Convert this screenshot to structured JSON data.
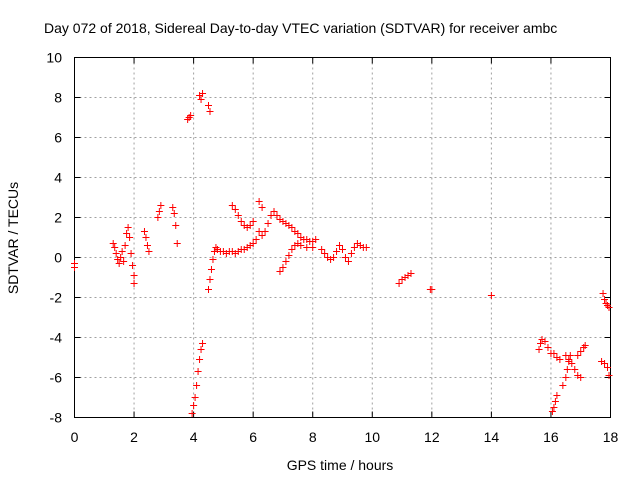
{
  "chart_data": {
    "type": "scatter",
    "title": "Day 072 of 2018, Sidereal Day-to-day VTEC variation (SDTVAR) for receiver ambc",
    "xlabel": "GPS time / hours",
    "ylabel": "SDTVAR / TECUs",
    "xlim": [
      0,
      18
    ],
    "ylim": [
      -8,
      10
    ],
    "xticks": [
      "0",
      "2",
      "4",
      "6",
      "8",
      "10",
      "12",
      "14",
      "16",
      "18"
    ],
    "yticks": [
      "-8",
      "-6",
      "-4",
      "-2",
      "0",
      "2",
      "4",
      "6",
      "8",
      "10"
    ],
    "grid": true,
    "marker": "+",
    "color": "#ff0000",
    "series": [
      {
        "name": "SDTVAR",
        "points": [
          [
            0.0,
            -0.3
          ],
          [
            0.0,
            -0.5
          ],
          [
            1.3,
            0.7
          ],
          [
            1.35,
            0.5
          ],
          [
            1.4,
            0.2
          ],
          [
            1.45,
            -0.1
          ],
          [
            1.5,
            -0.3
          ],
          [
            1.55,
            0.0
          ],
          [
            1.6,
            0.3
          ],
          [
            1.65,
            -0.2
          ],
          [
            1.7,
            0.6
          ],
          [
            1.75,
            1.2
          ],
          [
            1.8,
            1.5
          ],
          [
            1.85,
            1.0
          ],
          [
            1.9,
            0.2
          ],
          [
            1.95,
            -0.4
          ],
          [
            2.0,
            -0.9
          ],
          [
            2.0,
            -1.3
          ],
          [
            2.35,
            1.3
          ],
          [
            2.4,
            1.0
          ],
          [
            2.45,
            0.6
          ],
          [
            2.5,
            0.3
          ],
          [
            2.8,
            2.0
          ],
          [
            2.85,
            2.3
          ],
          [
            2.9,
            2.6
          ],
          [
            3.3,
            2.5
          ],
          [
            3.35,
            2.2
          ],
          [
            3.4,
            1.6
          ],
          [
            3.45,
            0.7
          ],
          [
            3.8,
            6.9
          ],
          [
            3.85,
            7.0
          ],
          [
            3.9,
            7.1
          ],
          [
            4.2,
            8.1
          ],
          [
            4.25,
            7.9
          ],
          [
            4.3,
            8.2
          ],
          [
            4.5,
            7.6
          ],
          [
            4.55,
            7.3
          ],
          [
            3.95,
            -7.8
          ],
          [
            4.0,
            -7.4
          ],
          [
            4.05,
            -7.0
          ],
          [
            4.1,
            -6.4
          ],
          [
            4.15,
            -5.7
          ],
          [
            4.2,
            -5.1
          ],
          [
            4.25,
            -4.6
          ],
          [
            4.3,
            -4.3
          ],
          [
            4.5,
            -1.6
          ],
          [
            4.55,
            -1.1
          ],
          [
            4.6,
            -0.6
          ],
          [
            4.65,
            -0.1
          ],
          [
            4.7,
            0.3
          ],
          [
            4.75,
            0.5
          ],
          [
            4.8,
            0.4
          ],
          [
            4.9,
            0.3
          ],
          [
            5.0,
            0.3
          ],
          [
            5.1,
            0.2
          ],
          [
            5.2,
            0.3
          ],
          [
            5.3,
            0.3
          ],
          [
            5.4,
            0.2
          ],
          [
            5.5,
            0.3
          ],
          [
            5.6,
            0.4
          ],
          [
            5.7,
            0.4
          ],
          [
            5.8,
            0.5
          ],
          [
            5.9,
            0.6
          ],
          [
            6.0,
            0.7
          ],
          [
            6.1,
            0.9
          ],
          [
            5.3,
            2.6
          ],
          [
            5.4,
            2.4
          ],
          [
            5.5,
            2.1
          ],
          [
            5.6,
            1.8
          ],
          [
            5.7,
            1.6
          ],
          [
            5.8,
            1.5
          ],
          [
            5.9,
            1.6
          ],
          [
            6.0,
            1.8
          ],
          [
            6.2,
            2.8
          ],
          [
            6.3,
            2.5
          ],
          [
            6.2,
            1.3
          ],
          [
            6.3,
            1.1
          ],
          [
            6.4,
            1.3
          ],
          [
            6.5,
            1.7
          ],
          [
            6.6,
            2.1
          ],
          [
            6.7,
            2.3
          ],
          [
            6.8,
            2.1
          ],
          [
            6.9,
            1.9
          ],
          [
            7.0,
            1.8
          ],
          [
            7.1,
            1.7
          ],
          [
            7.2,
            1.6
          ],
          [
            7.3,
            1.5
          ],
          [
            7.4,
            1.3
          ],
          [
            7.5,
            1.2
          ],
          [
            7.6,
            1.0
          ],
          [
            7.7,
            0.9
          ],
          [
            7.8,
            0.9
          ],
          [
            7.9,
            0.8
          ],
          [
            8.0,
            0.8
          ],
          [
            6.9,
            -0.7
          ],
          [
            7.0,
            -0.5
          ],
          [
            7.1,
            -0.2
          ],
          [
            7.2,
            0.1
          ],
          [
            7.3,
            0.4
          ],
          [
            7.4,
            0.6
          ],
          [
            7.5,
            0.7
          ],
          [
            7.6,
            0.6
          ],
          [
            7.8,
            0.5
          ],
          [
            8.0,
            0.5
          ],
          [
            8.1,
            0.9
          ],
          [
            8.3,
            0.4
          ],
          [
            8.4,
            0.2
          ],
          [
            8.5,
            0.0
          ],
          [
            8.6,
            -0.1
          ],
          [
            8.7,
            0.0
          ],
          [
            8.8,
            0.3
          ],
          [
            8.9,
            0.6
          ],
          [
            9.0,
            0.4
          ],
          [
            9.1,
            0.0
          ],
          [
            9.2,
            -0.2
          ],
          [
            9.3,
            0.2
          ],
          [
            9.4,
            0.5
          ],
          [
            9.5,
            0.7
          ],
          [
            9.6,
            0.6
          ],
          [
            9.7,
            0.5
          ],
          [
            9.8,
            0.5
          ],
          [
            10.9,
            -1.3
          ],
          [
            11.0,
            -1.1
          ],
          [
            11.1,
            -1.0
          ],
          [
            11.2,
            -0.9
          ],
          [
            11.3,
            -0.8
          ],
          [
            11.95,
            -1.6
          ],
          [
            12.0,
            -1.6
          ],
          [
            14.0,
            -1.9
          ],
          [
            15.6,
            -4.6
          ],
          [
            15.65,
            -4.3
          ],
          [
            15.7,
            -4.1
          ],
          [
            15.8,
            -4.2
          ],
          [
            15.9,
            -4.5
          ],
          [
            16.0,
            -4.8
          ],
          [
            16.05,
            -7.7
          ],
          [
            16.1,
            -7.5
          ],
          [
            16.15,
            -7.2
          ],
          [
            16.2,
            -6.9
          ],
          [
            16.1,
            -4.8
          ],
          [
            16.2,
            -5.0
          ],
          [
            16.3,
            -5.1
          ],
          [
            16.4,
            -6.4
          ],
          [
            16.5,
            -6.0
          ],
          [
            16.55,
            -5.6
          ],
          [
            16.6,
            -5.2
          ],
          [
            16.65,
            -4.9
          ],
          [
            16.5,
            -4.9
          ],
          [
            16.6,
            -5.1
          ],
          [
            16.7,
            -5.3
          ],
          [
            16.8,
            -5.6
          ],
          [
            16.9,
            -5.9
          ],
          [
            17.0,
            -6.0
          ],
          [
            16.9,
            -4.9
          ],
          [
            17.0,
            -4.7
          ],
          [
            17.1,
            -4.5
          ],
          [
            17.15,
            -4.4
          ],
          [
            17.75,
            -1.8
          ],
          [
            17.8,
            -2.1
          ],
          [
            17.85,
            -2.3
          ],
          [
            17.9,
            -2.4
          ],
          [
            17.95,
            -2.5
          ],
          [
            17.7,
            -5.2
          ],
          [
            17.8,
            -5.3
          ],
          [
            17.9,
            -5.5
          ],
          [
            17.95,
            -5.9
          ]
        ]
      }
    ]
  }
}
